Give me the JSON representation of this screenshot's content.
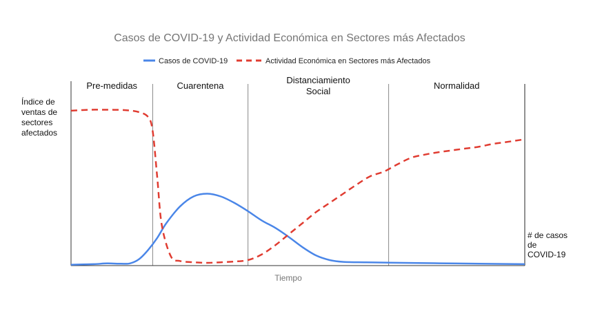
{
  "chart_data": {
    "type": "line",
    "title": "Casos de COVID-19 y Actividad Económica en Sectores más Afectados",
    "xlabel": "Tiempo",
    "ylabel_left": [
      "Índice de",
      "ventas de",
      "sectores",
      "afectados"
    ],
    "ylabel_right": [
      "# de casos",
      "de",
      "COVID-19"
    ],
    "xlim": [
      0,
      100
    ],
    "ylim": [
      0,
      100
    ],
    "grid": false,
    "legend_position": "top",
    "phases": [
      {
        "label": [
          "Pre-medidas"
        ],
        "start": 0,
        "end": 18
      },
      {
        "label": [
          "Cuarentena"
        ],
        "start": 18,
        "end": 39
      },
      {
        "label": [
          "Distanciamiento",
          "Social"
        ],
        "start": 39,
        "end": 70
      },
      {
        "label": [
          "Normalidad"
        ],
        "start": 70,
        "end": 100
      }
    ],
    "phase_boundaries": [
      18,
      39,
      70,
      100
    ],
    "series": [
      {
        "name": "Casos de COVID-19",
        "color": "#4a86e8",
        "style": "solid",
        "x": [
          0,
          5,
          8,
          11,
          13,
          15,
          17,
          19,
          21,
          24,
          27,
          30,
          33,
          36,
          39,
          42,
          45,
          48,
          51,
          54,
          57,
          60,
          65,
          70,
          80,
          90,
          100
        ],
        "y": [
          0.5,
          0.8,
          1.2,
          1.0,
          1.2,
          3.5,
          8.5,
          15,
          23,
          32,
          37.5,
          39,
          37.5,
          34,
          29.5,
          24.5,
          20.5,
          15.5,
          10,
          5.5,
          3,
          2,
          1.8,
          1.6,
          1.3,
          1.0,
          0.8
        ]
      },
      {
        "name": "Actividad Económica en Sectores más Afectados",
        "color": "#e03c31",
        "style": "dashed",
        "x": [
          0,
          4,
          8,
          12,
          15,
          17,
          18,
          19,
          20,
          22,
          24,
          27,
          30,
          33,
          36,
          39,
          42,
          45,
          48,
          51,
          54,
          57,
          60,
          63,
          66,
          69,
          72,
          75,
          78,
          81,
          84,
          87,
          90,
          93,
          96,
          100
        ],
        "y": [
          84,
          84.5,
          84.5,
          84.3,
          83.2,
          80.5,
          73,
          48,
          22,
          5,
          2.5,
          1.8,
          1.5,
          1.8,
          2.2,
          3,
          6,
          11,
          17,
          23,
          29,
          34,
          39,
          44,
          48.5,
          51,
          55,
          58.5,
          60.2,
          61.5,
          62.5,
          63.5,
          64.5,
          66,
          67,
          68.5
        ]
      }
    ]
  }
}
